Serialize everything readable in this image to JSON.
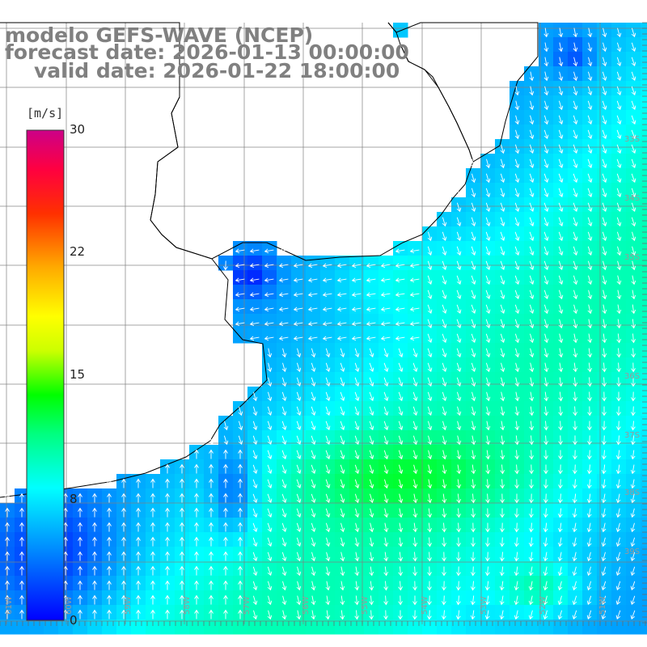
{
  "titles": {
    "line1": "modelo GEFS-WAVE (NCEP)",
    "line2": "forecast date: 2026-01-13 00:00:00",
    "line3": "valid date: 2026-01-22 18:00:00"
  },
  "colorbar": {
    "unit": "[m/s]",
    "ticks": [
      "30",
      "22",
      "15",
      "8",
      "0"
    ],
    "tick_values": [
      30,
      22,
      15,
      8,
      0
    ],
    "max_value": 30,
    "colors": [
      "#0000ff",
      "#00aaff",
      "#00ffff",
      "#00ff66",
      "#00ff00",
      "#ccff00",
      "#ffff00",
      "#ffaa00",
      "#ff5500",
      "#ff0000",
      "#ff0066",
      "#cc0088"
    ]
  },
  "axes": {
    "lon_labels": [
      "61W",
      "60W",
      "59W",
      "58W",
      "57W",
      "56W",
      "55W",
      "54W",
      "53W",
      "52W",
      "51W"
    ],
    "lat_labels": [
      "33S",
      "34S",
      "35S",
      "36S",
      "37S",
      "38S",
      "39S"
    ]
  },
  "colors": {
    "land": "#ffffff",
    "grid": "#808080",
    "coast": "#000000",
    "arrow": "#ffffff",
    "title_text": "#808080"
  }
}
